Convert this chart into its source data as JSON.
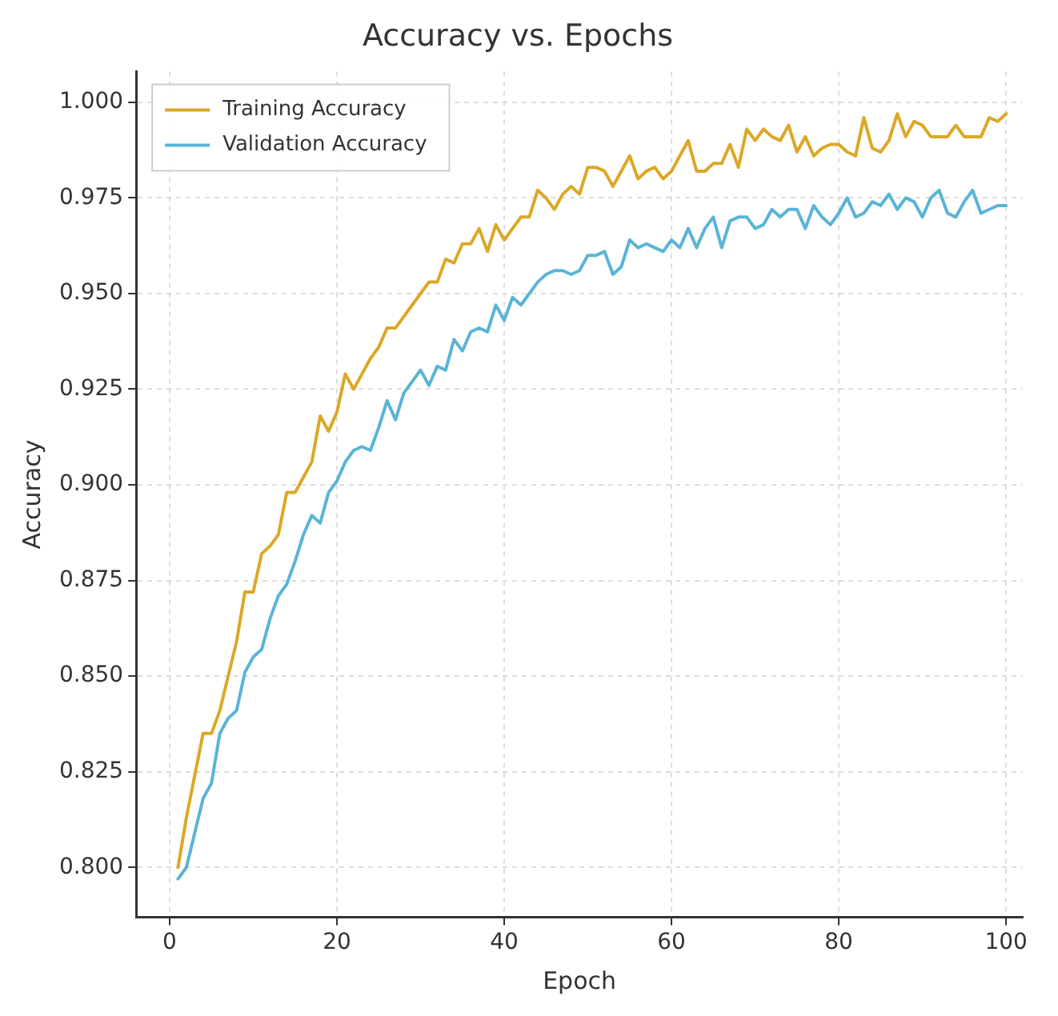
{
  "chart_data": {
    "type": "line",
    "title": "Accuracy vs. Epochs",
    "xlabel": "Epoch",
    "ylabel": "Accuracy",
    "x": [
      1,
      2,
      3,
      4,
      5,
      6,
      7,
      8,
      9,
      10,
      11,
      12,
      13,
      14,
      15,
      16,
      17,
      18,
      19,
      20,
      21,
      22,
      23,
      24,
      25,
      26,
      27,
      28,
      29,
      30,
      31,
      32,
      33,
      34,
      35,
      36,
      37,
      38,
      39,
      40,
      41,
      42,
      43,
      44,
      45,
      46,
      47,
      48,
      49,
      50,
      51,
      52,
      53,
      54,
      55,
      56,
      57,
      58,
      59,
      60,
      61,
      62,
      63,
      64,
      65,
      66,
      67,
      68,
      69,
      70,
      71,
      72,
      73,
      74,
      75,
      76,
      77,
      78,
      79,
      80,
      81,
      82,
      83,
      84,
      85,
      86,
      87,
      88,
      89,
      90,
      91,
      92,
      93,
      94,
      95,
      96,
      97,
      98,
      99,
      100
    ],
    "series": [
      {
        "name": "Training Accuracy",
        "color": "#dba826",
        "values": [
          0.8,
          0.813,
          0.824,
          0.835,
          0.835,
          0.841,
          0.85,
          0.859,
          0.872,
          0.872,
          0.882,
          0.884,
          0.887,
          0.898,
          0.898,
          0.902,
          0.906,
          0.918,
          0.914,
          0.919,
          0.929,
          0.925,
          0.929,
          0.933,
          0.936,
          0.941,
          0.941,
          0.944,
          0.947,
          0.95,
          0.953,
          0.953,
          0.959,
          0.958,
          0.963,
          0.963,
          0.967,
          0.961,
          0.968,
          0.964,
          0.967,
          0.97,
          0.97,
          0.977,
          0.975,
          0.972,
          0.976,
          0.978,
          0.976,
          0.983,
          0.983,
          0.982,
          0.978,
          0.982,
          0.986,
          0.98,
          0.982,
          0.983,
          0.98,
          0.982,
          0.986,
          0.99,
          0.982,
          0.982,
          0.984,
          0.984,
          0.989,
          0.983,
          0.993,
          0.99,
          0.993,
          0.991,
          0.99,
          0.994,
          0.987,
          0.991,
          0.986,
          0.988,
          0.989,
          0.989,
          0.987,
          0.986,
          0.996,
          0.988,
          0.987,
          0.99,
          0.997,
          0.991,
          0.995,
          0.994,
          0.991,
          0.991,
          0.991,
          0.994,
          0.991,
          0.991,
          0.991,
          0.996,
          0.995,
          0.997
        ]
      },
      {
        "name": "Validation Accuracy",
        "color": "#5ab4d6",
        "values": [
          0.797,
          0.8,
          0.809,
          0.818,
          0.822,
          0.835,
          0.839,
          0.841,
          0.851,
          0.855,
          0.857,
          0.865,
          0.871,
          0.874,
          0.88,
          0.887,
          0.892,
          0.89,
          0.898,
          0.901,
          0.906,
          0.909,
          0.91,
          0.909,
          0.915,
          0.922,
          0.917,
          0.924,
          0.927,
          0.93,
          0.926,
          0.931,
          0.93,
          0.938,
          0.935,
          0.94,
          0.941,
          0.94,
          0.947,
          0.943,
          0.949,
          0.947,
          0.95,
          0.953,
          0.955,
          0.956,
          0.956,
          0.955,
          0.956,
          0.96,
          0.96,
          0.961,
          0.955,
          0.957,
          0.964,
          0.962,
          0.963,
          0.962,
          0.961,
          0.964,
          0.962,
          0.967,
          0.962,
          0.967,
          0.97,
          0.962,
          0.969,
          0.97,
          0.97,
          0.967,
          0.968,
          0.972,
          0.97,
          0.972,
          0.972,
          0.967,
          0.973,
          0.97,
          0.968,
          0.971,
          0.975,
          0.97,
          0.971,
          0.974,
          0.973,
          0.976,
          0.972,
          0.975,
          0.974,
          0.97,
          0.975,
          0.977,
          0.971,
          0.97,
          0.974,
          0.977,
          0.971,
          0.972,
          0.973,
          0.973
        ]
      }
    ],
    "xlim": [
      -4,
      102
    ],
    "xticks": [
      0,
      20,
      40,
      60,
      80,
      100
    ],
    "ylim": [
      0.787,
      1.008
    ],
    "yticks": [
      {
        "value": 0.8,
        "label": "0.800"
      },
      {
        "value": 0.825,
        "label": "0.825"
      },
      {
        "value": 0.85,
        "label": "0.850"
      },
      {
        "value": 0.875,
        "label": "0.875"
      },
      {
        "value": 0.9,
        "label": "0.900"
      },
      {
        "value": 0.925,
        "label": "0.925"
      },
      {
        "value": 0.95,
        "label": "0.950"
      },
      {
        "value": 0.975,
        "label": "0.975"
      },
      {
        "value": 1.0,
        "label": "1.000"
      }
    ],
    "grid": true,
    "legend": "top left",
    "marker": "none",
    "line_style": "solid"
  }
}
